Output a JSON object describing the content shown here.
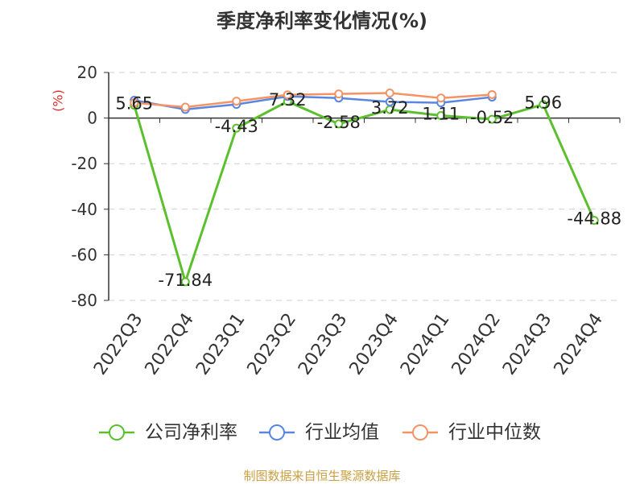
{
  "footer": "制图数据来自恒生聚源数据库",
  "colors": {
    "footer": "#c9a042",
    "unit_label": "#d9302c",
    "axis": "#333333",
    "grid": "#cfcfcf"
  },
  "chart_data": {
    "type": "line",
    "title": "季度净利率变化情况(%)",
    "ylabel": "(%)",
    "xlabel": "",
    "categories": [
      "2022Q3",
      "2022Q4",
      "2023Q1",
      "2023Q2",
      "2023Q3",
      "2023Q4",
      "2024Q1",
      "2024Q2",
      "2024Q3",
      "2024Q4"
    ],
    "ylim": [
      -80,
      20
    ],
    "yticks": [
      20,
      0,
      -20,
      -40,
      -60,
      -80
    ],
    "grid": true,
    "legend_position": "bottom",
    "series": [
      {
        "name": "公司净利率",
        "color": "#5cbf2e",
        "data_labels": true,
        "values": [
          5.65,
          -71.84,
          -4.43,
          7.32,
          -2.58,
          3.72,
          1.11,
          -0.52,
          5.96,
          -44.88
        ]
      },
      {
        "name": "行业均值",
        "color": "#5a86e0",
        "data_labels": false,
        "values": [
          7.8,
          3.8,
          6.0,
          9.5,
          8.8,
          7.1,
          6.7,
          9.2,
          null,
          null
        ]
      },
      {
        "name": "行业中位数",
        "color": "#f49466",
        "data_labels": false,
        "values": [
          6.7,
          4.8,
          7.4,
          10.2,
          10.6,
          11.0,
          8.8,
          10.3,
          null,
          null
        ]
      }
    ]
  }
}
